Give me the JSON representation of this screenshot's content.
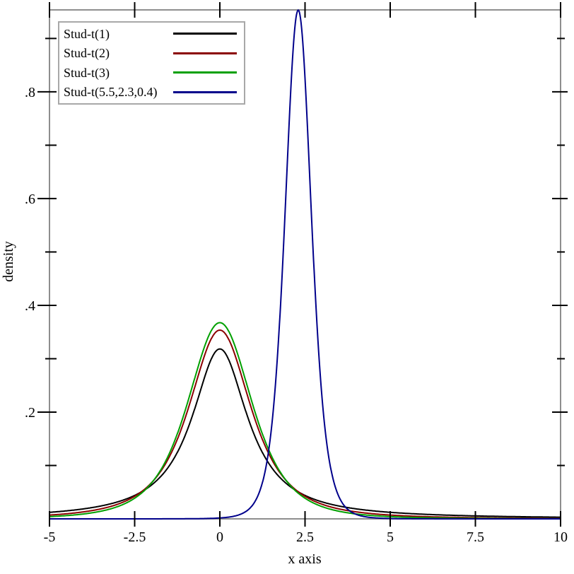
{
  "figure_title": "",
  "chart_data": {
    "type": "line",
    "subtype": "probability-density-curves",
    "title": "",
    "xlabel": "x axis",
    "ylabel": "density",
    "xlim": [
      -5,
      10
    ],
    "ylim": [
      0,
      0.9535
    ],
    "grid": false,
    "legend_position": "top-left",
    "frame_color": "#8e8e8e",
    "tick_color": "#000000",
    "x_major_ticks": [
      -5,
      -2.5,
      0,
      2.5,
      5,
      7.5,
      10
    ],
    "x_tick_labels": [
      "-5",
      "-2.5",
      "0",
      "2.5",
      "5",
      "7.5",
      "10"
    ],
    "y_major_ticks": [
      0.2,
      0.4,
      0.6,
      0.8
    ],
    "y_tick_labels": [
      ".2",
      ".4",
      ".6",
      ".8"
    ],
    "y_minor_ticks": [
      0.1,
      0.3,
      0.5,
      0.7,
      0.9
    ],
    "series": [
      {
        "name": "Stud-t(1)",
        "distribution": "student-t",
        "df": 1,
        "location": 0,
        "scale": 1,
        "color": "#000000",
        "peak_x": 0,
        "peak_density": 0.318
      },
      {
        "name": "Stud-t(2)",
        "distribution": "student-t",
        "df": 2,
        "location": 0,
        "scale": 1,
        "color": "#8b0000",
        "peak_x": 0,
        "peak_density": 0.354
      },
      {
        "name": "Stud-t(3)",
        "distribution": "student-t",
        "df": 3,
        "location": 0,
        "scale": 1,
        "color": "#00a000",
        "peak_x": 0,
        "peak_density": 0.368
      },
      {
        "name": "Stud-t(5.5,2.3,0.4)",
        "distribution": "student-t",
        "df": 5.5,
        "location": 2.3,
        "scale": 0.4,
        "color": "#00008b",
        "peak_x": 2.3,
        "peak_density": 0.953
      }
    ]
  }
}
